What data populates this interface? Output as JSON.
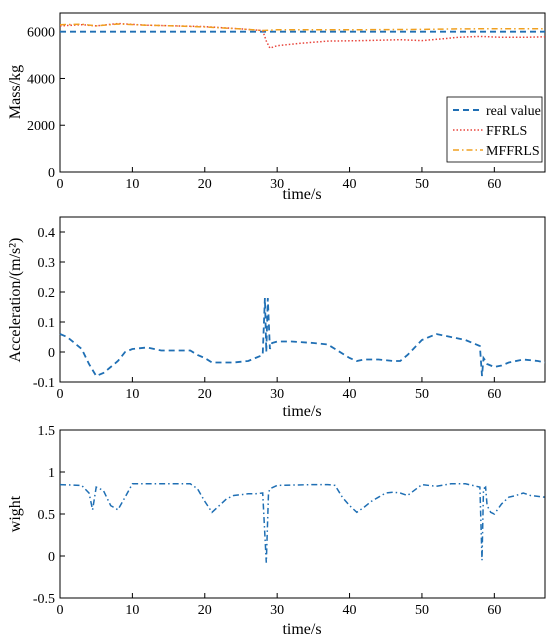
{
  "chart_data": [
    {
      "type": "line",
      "xlabel": "time/s",
      "ylabel": "Mass/kg",
      "xlim": [
        0,
        67
      ],
      "ylim": [
        0,
        6800
      ],
      "xticks": [
        "0",
        "10",
        "20",
        "30",
        "40",
        "50",
        "60"
      ],
      "yticks": [
        "0",
        "2000",
        "4000",
        "6000"
      ],
      "legend_position": "bottom-right",
      "series": [
        {
          "name": "real value",
          "color": "#1f6fb4",
          "dash": "dashed",
          "x": [
            0,
            67
          ],
          "y": [
            6000,
            6000
          ]
        },
        {
          "name": "FFRLS",
          "color": "#e8453c",
          "dash": "dotted",
          "x": [
            0,
            3,
            5,
            8,
            12,
            16,
            20,
            25,
            28,
            28.5,
            29,
            30,
            33,
            37,
            42,
            47,
            50,
            53,
            55,
            58,
            61,
            64,
            67
          ],
          "y": [
            6250,
            6300,
            6250,
            6350,
            6280,
            6250,
            6220,
            6120,
            6050,
            5600,
            5300,
            5400,
            5500,
            5600,
            5620,
            5660,
            5620,
            5700,
            5760,
            5800,
            5760,
            5760,
            5780
          ]
        },
        {
          "name": "MFFRLS",
          "color": "#f0a020",
          "dash": "dashdot",
          "x": [
            0,
            3,
            5,
            8,
            12,
            16,
            20,
            25,
            28,
            30,
            35,
            40,
            45,
            50,
            55,
            60,
            67
          ],
          "y": [
            6300,
            6320,
            6250,
            6330,
            6280,
            6250,
            6200,
            6120,
            6050,
            6080,
            6080,
            6080,
            6090,
            6100,
            6120,
            6130,
            6130
          ]
        }
      ]
    },
    {
      "type": "line",
      "xlabel": "time/s",
      "ylabel": "Acceleration/(m/s²)",
      "xlim": [
        0,
        67
      ],
      "ylim": [
        -0.1,
        0.45
      ],
      "xticks": [
        "0",
        "10",
        "20",
        "30",
        "40",
        "50",
        "60"
      ],
      "yticks": [
        "-0.1",
        "0",
        "0.1",
        "0.2",
        "0.3",
        "0.4"
      ],
      "series": [
        {
          "color": "#1f6fb4",
          "dash": "dashed",
          "x": [
            0,
            1,
            2,
            3,
            4,
            5,
            6,
            7,
            8,
            9,
            10,
            12,
            14,
            16,
            18,
            19,
            20,
            21,
            24,
            26,
            27,
            28,
            28.3,
            28.5,
            28.7,
            29,
            29.3,
            30,
            32,
            35,
            37,
            38,
            40,
            41,
            42,
            44,
            46,
            47,
            48,
            50,
            52,
            54,
            56,
            57,
            58,
            58.3,
            58.5,
            58.8,
            59,
            60,
            61,
            62,
            64,
            66,
            67
          ],
          "y": [
            0.06,
            0.05,
            0.03,
            0.01,
            -0.04,
            -0.08,
            -0.07,
            -0.05,
            -0.03,
            0.0,
            0.01,
            0.015,
            0.005,
            0.005,
            0.005,
            -0.01,
            -0.02,
            -0.035,
            -0.035,
            -0.03,
            -0.02,
            -0.01,
            0.18,
            0.0,
            0.18,
            0.01,
            0.03,
            0.035,
            0.035,
            0.03,
            0.025,
            0.01,
            -0.02,
            -0.03,
            -0.025,
            -0.025,
            -0.03,
            -0.03,
            -0.01,
            0.04,
            0.06,
            0.05,
            0.04,
            0.03,
            0.02,
            -0.08,
            -0.02,
            -0.03,
            -0.04,
            -0.05,
            -0.045,
            -0.035,
            -0.025,
            -0.03,
            -0.035
          ]
        }
      ]
    },
    {
      "type": "line",
      "xlabel": "time/s",
      "ylabel": "wight",
      "xlim": [
        0,
        67
      ],
      "ylim": [
        -0.5,
        1.5
      ],
      "xticks": [
        "0",
        "10",
        "20",
        "30",
        "40",
        "50",
        "60"
      ],
      "yticks": [
        "-0.5",
        "0",
        "0.5",
        "1",
        "1.5"
      ],
      "series": [
        {
          "color": "#1f6fb4",
          "dash": "dashdot",
          "x": [
            0,
            3,
            4,
            4.5,
            5,
            6,
            7,
            8,
            9,
            10,
            12,
            14,
            16,
            18,
            19,
            20,
            21,
            22,
            23,
            24,
            25,
            26,
            27,
            28,
            28.5,
            28.8,
            29,
            30,
            35,
            37,
            38,
            39,
            40,
            41,
            42,
            43,
            44,
            45,
            46,
            47,
            48,
            50,
            52,
            54,
            56,
            57,
            58,
            58.3,
            58.5,
            58.8,
            59,
            59.5,
            60,
            61,
            62,
            63,
            64,
            65,
            67
          ],
          "y": [
            0.85,
            0.84,
            0.75,
            0.55,
            0.82,
            0.78,
            0.6,
            0.55,
            0.7,
            0.86,
            0.86,
            0.86,
            0.86,
            0.86,
            0.8,
            0.65,
            0.52,
            0.6,
            0.68,
            0.72,
            0.73,
            0.74,
            0.74,
            0.75,
            -0.08,
            0.75,
            0.8,
            0.84,
            0.85,
            0.85,
            0.84,
            0.7,
            0.6,
            0.52,
            0.58,
            0.65,
            0.7,
            0.75,
            0.76,
            0.75,
            0.72,
            0.85,
            0.83,
            0.86,
            0.86,
            0.84,
            0.82,
            -0.05,
            0.8,
            0.82,
            0.6,
            0.52,
            0.5,
            0.62,
            0.7,
            0.72,
            0.75,
            0.72,
            0.7
          ]
        }
      ]
    }
  ]
}
